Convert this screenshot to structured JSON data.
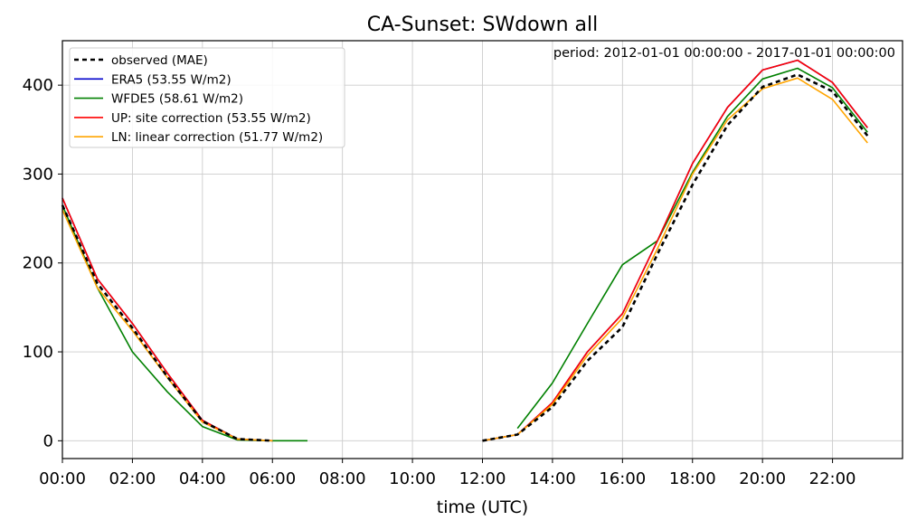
{
  "chart_data": {
    "type": "line",
    "title": "CA-Sunset: SWdown all",
    "xlabel": "time (UTC)",
    "ylabel": "",
    "annotation": "period: 2012-01-01 00:00:00 - 2017-01-01 00:00:00",
    "xlim": [
      0,
      24
    ],
    "ylim": [
      -20,
      450
    ],
    "grid": true,
    "legend_position": "top-left",
    "x_ticks": [
      0,
      2,
      4,
      6,
      8,
      10,
      12,
      14,
      16,
      18,
      20,
      22
    ],
    "x_tick_labels": [
      "00:00",
      "02:00",
      "04:00",
      "06:00",
      "08:00",
      "10:00",
      "12:00",
      "14:00",
      "16:00",
      "18:00",
      "20:00",
      "22:00"
    ],
    "y_ticks": [
      0,
      100,
      200,
      300,
      400
    ],
    "y_tick_labels": [
      "0",
      "100",
      "200",
      "300",
      "400"
    ],
    "series": [
      {
        "name": "observed (MAE)",
        "color": "#000000",
        "style": "dashed",
        "points": [
          [
            0,
            265
          ],
          [
            1,
            177
          ],
          [
            2,
            127
          ],
          [
            3,
            72
          ],
          [
            4,
            22
          ],
          [
            5,
            2
          ],
          [
            6,
            0
          ],
          [
            12,
            0
          ],
          [
            13,
            7
          ],
          [
            14,
            38
          ],
          [
            15,
            90
          ],
          [
            16,
            128
          ],
          [
            17,
            210
          ],
          [
            18,
            288
          ],
          [
            19,
            355
          ],
          [
            20,
            398
          ],
          [
            21,
            412
          ],
          [
            22,
            393
          ],
          [
            23,
            343
          ]
        ]
      },
      {
        "name": "ERA5 (53.55 W/m2)",
        "color": "#0000cc",
        "style": "solid",
        "points": [
          [
            0,
            273
          ],
          [
            1,
            182
          ],
          [
            2,
            132
          ],
          [
            3,
            76
          ],
          [
            4,
            23
          ],
          [
            5,
            2
          ],
          [
            6,
            0
          ],
          [
            12,
            0
          ],
          [
            13,
            7
          ],
          [
            14,
            43
          ],
          [
            15,
            100
          ],
          [
            16,
            143
          ],
          [
            17,
            225
          ],
          [
            18,
            312
          ],
          [
            19,
            375
          ],
          [
            20,
            417
          ],
          [
            21,
            428
          ],
          [
            22,
            403
          ],
          [
            23,
            352
          ]
        ]
      },
      {
        "name": "WFDE5 (58.61 W/m2)",
        "color": "#008000",
        "style": "solid",
        "points": [
          [
            0,
            265
          ],
          [
            1,
            172
          ],
          [
            2,
            100
          ],
          [
            3,
            55
          ],
          [
            4,
            16
          ],
          [
            5,
            1
          ],
          [
            6,
            0
          ],
          [
            7,
            0
          ],
          [
            13,
            14
          ],
          [
            14,
            65
          ],
          [
            15,
            132
          ],
          [
            16,
            198
          ],
          [
            17,
            225
          ],
          [
            18,
            302
          ],
          [
            19,
            365
          ],
          [
            20,
            407
          ],
          [
            21,
            419
          ],
          [
            22,
            397
          ],
          [
            23,
            347
          ]
        ]
      },
      {
        "name": "UP: site correction (53.55 W/m2)",
        "color": "#ff0000",
        "style": "solid",
        "points": [
          [
            0,
            273
          ],
          [
            1,
            182
          ],
          [
            2,
            132
          ],
          [
            3,
            76
          ],
          [
            4,
            23
          ],
          [
            5,
            2
          ],
          [
            6,
            0
          ],
          [
            12,
            0
          ],
          [
            13,
            7
          ],
          [
            14,
            43
          ],
          [
            15,
            100
          ],
          [
            16,
            143
          ],
          [
            17,
            225
          ],
          [
            18,
            312
          ],
          [
            19,
            375
          ],
          [
            20,
            417
          ],
          [
            21,
            428
          ],
          [
            22,
            403
          ],
          [
            23,
            352
          ]
        ]
      },
      {
        "name": "LN: linear correction (51.77 W/m2)",
        "color": "#ffa500",
        "style": "solid",
        "points": [
          [
            0,
            260
          ],
          [
            1,
            172
          ],
          [
            2,
            124
          ],
          [
            3,
            71
          ],
          [
            4,
            21
          ],
          [
            5,
            2
          ],
          [
            6,
            0
          ],
          [
            12,
            0
          ],
          [
            13,
            7
          ],
          [
            14,
            41
          ],
          [
            15,
            96
          ],
          [
            16,
            138
          ],
          [
            17,
            216
          ],
          [
            18,
            300
          ],
          [
            19,
            361
          ],
          [
            20,
            396
          ],
          [
            21,
            408
          ],
          [
            22,
            384
          ],
          [
            23,
            335
          ]
        ]
      }
    ]
  }
}
